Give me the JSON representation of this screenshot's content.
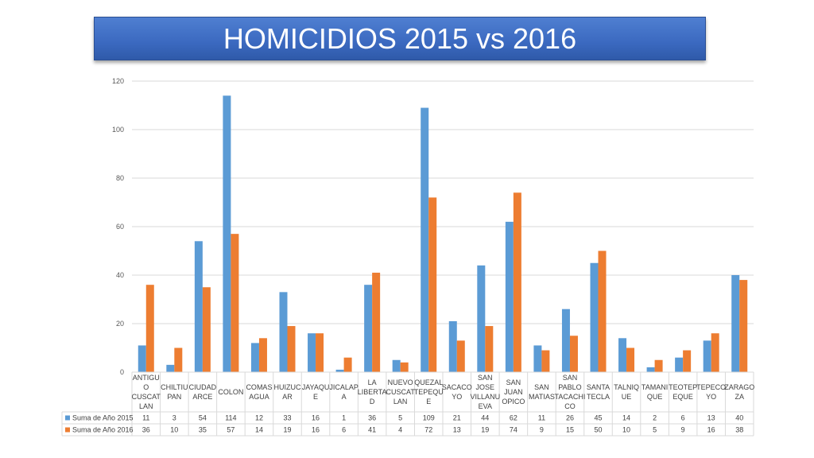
{
  "title": "HOMICIDIOS 2015 vs 2016",
  "colors": {
    "series_2015": "#5b9bd5",
    "series_2016": "#ed7d31",
    "grid": "#d9d9d9",
    "banner": "#3b69c0"
  },
  "chart_data": {
    "type": "bar",
    "title": "HOMICIDIOS 2015 vs 2016",
    "categories": [
      [
        "ANTIGU",
        "O",
        "CUSCAT",
        "LAN"
      ],
      [
        "CHILTIU",
        "PAN"
      ],
      [
        "CIUDAD",
        "ARCE"
      ],
      [
        "COLON"
      ],
      [
        "COMAS",
        "AGUA"
      ],
      [
        "HUIZUC",
        "AR"
      ],
      [
        "JAYAQU",
        "E"
      ],
      [
        "JICALAP",
        "A"
      ],
      [
        "LA",
        "LIBERTA",
        "D"
      ],
      [
        "NUEVO",
        "CUSCAT",
        "LAN"
      ],
      [
        "QUEZAL",
        "TEPEQU",
        "E"
      ],
      [
        "SACACO",
        "YO"
      ],
      [
        "SAN",
        "JOSE",
        "VILLANU",
        "EVA"
      ],
      [
        "SAN",
        "JUAN",
        "OPICO"
      ],
      [
        "SAN",
        "MATIAS"
      ],
      [
        "SAN",
        "PABLO",
        "TACACHI",
        "CO"
      ],
      [
        "SANTA",
        "TECLA"
      ],
      [
        "TALNIQ",
        "UE"
      ],
      [
        "TAMANI",
        "QUE"
      ],
      [
        "TEOTEP",
        "EQUE"
      ],
      [
        "TEPECO",
        "YO"
      ],
      [
        "ZARAGO",
        "ZA"
      ]
    ],
    "series": [
      {
        "name": "Suma de Año 2015",
        "values": [
          11,
          3,
          54,
          114,
          12,
          33,
          16,
          1,
          36,
          5,
          109,
          21,
          44,
          62,
          11,
          26,
          45,
          14,
          2,
          6,
          13,
          40
        ]
      },
      {
        "name": "Suma de Año 2016",
        "values": [
          36,
          10,
          35,
          57,
          14,
          19,
          16,
          6,
          41,
          4,
          72,
          13,
          19,
          74,
          9,
          15,
          50,
          10,
          5,
          9,
          16,
          38
        ]
      }
    ],
    "ylim": [
      0,
      120
    ],
    "yticks": [
      "0",
      "20",
      "40",
      "60",
      "80",
      "100",
      "120"
    ],
    "grid": true,
    "legend": "data-table"
  }
}
